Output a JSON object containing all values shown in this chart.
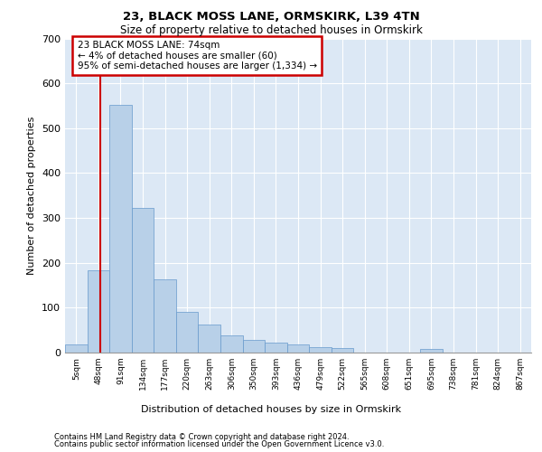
{
  "title1": "23, BLACK MOSS LANE, ORMSKIRK, L39 4TN",
  "title2": "Size of property relative to detached houses in Ormskirk",
  "xlabel": "Distribution of detached houses by size in Ormskirk",
  "ylabel": "Number of detached properties",
  "bar_color": "#b8d0e8",
  "bar_edge_color": "#6699cc",
  "background_color": "#dce8f5",
  "grid_color": "#ffffff",
  "bin_labels": [
    "5sqm",
    "48sqm",
    "91sqm",
    "134sqm",
    "177sqm",
    "220sqm",
    "263sqm",
    "306sqm",
    "350sqm",
    "393sqm",
    "436sqm",
    "479sqm",
    "522sqm",
    "565sqm",
    "608sqm",
    "651sqm",
    "695sqm",
    "738sqm",
    "781sqm",
    "824sqm",
    "867sqm"
  ],
  "bar_heights": [
    18,
    183,
    552,
    323,
    163,
    90,
    63,
    38,
    28,
    23,
    18,
    13,
    10,
    0,
    0,
    0,
    9,
    0,
    0,
    0,
    0
  ],
  "red_line_x": 1.6,
  "annotation_text": "23 BLACK MOSS LANE: 74sqm\n← 4% of detached houses are smaller (60)\n95% of semi-detached houses are larger (1,334) →",
  "annotation_box_color": "#ffffff",
  "annotation_border_color": "#cc0000",
  "ylim": [
    0,
    700
  ],
  "yticks": [
    0,
    100,
    200,
    300,
    400,
    500,
    600,
    700
  ],
  "footnote1": "Contains HM Land Registry data © Crown copyright and database right 2024.",
  "footnote2": "Contains public sector information licensed under the Open Government Licence v3.0."
}
